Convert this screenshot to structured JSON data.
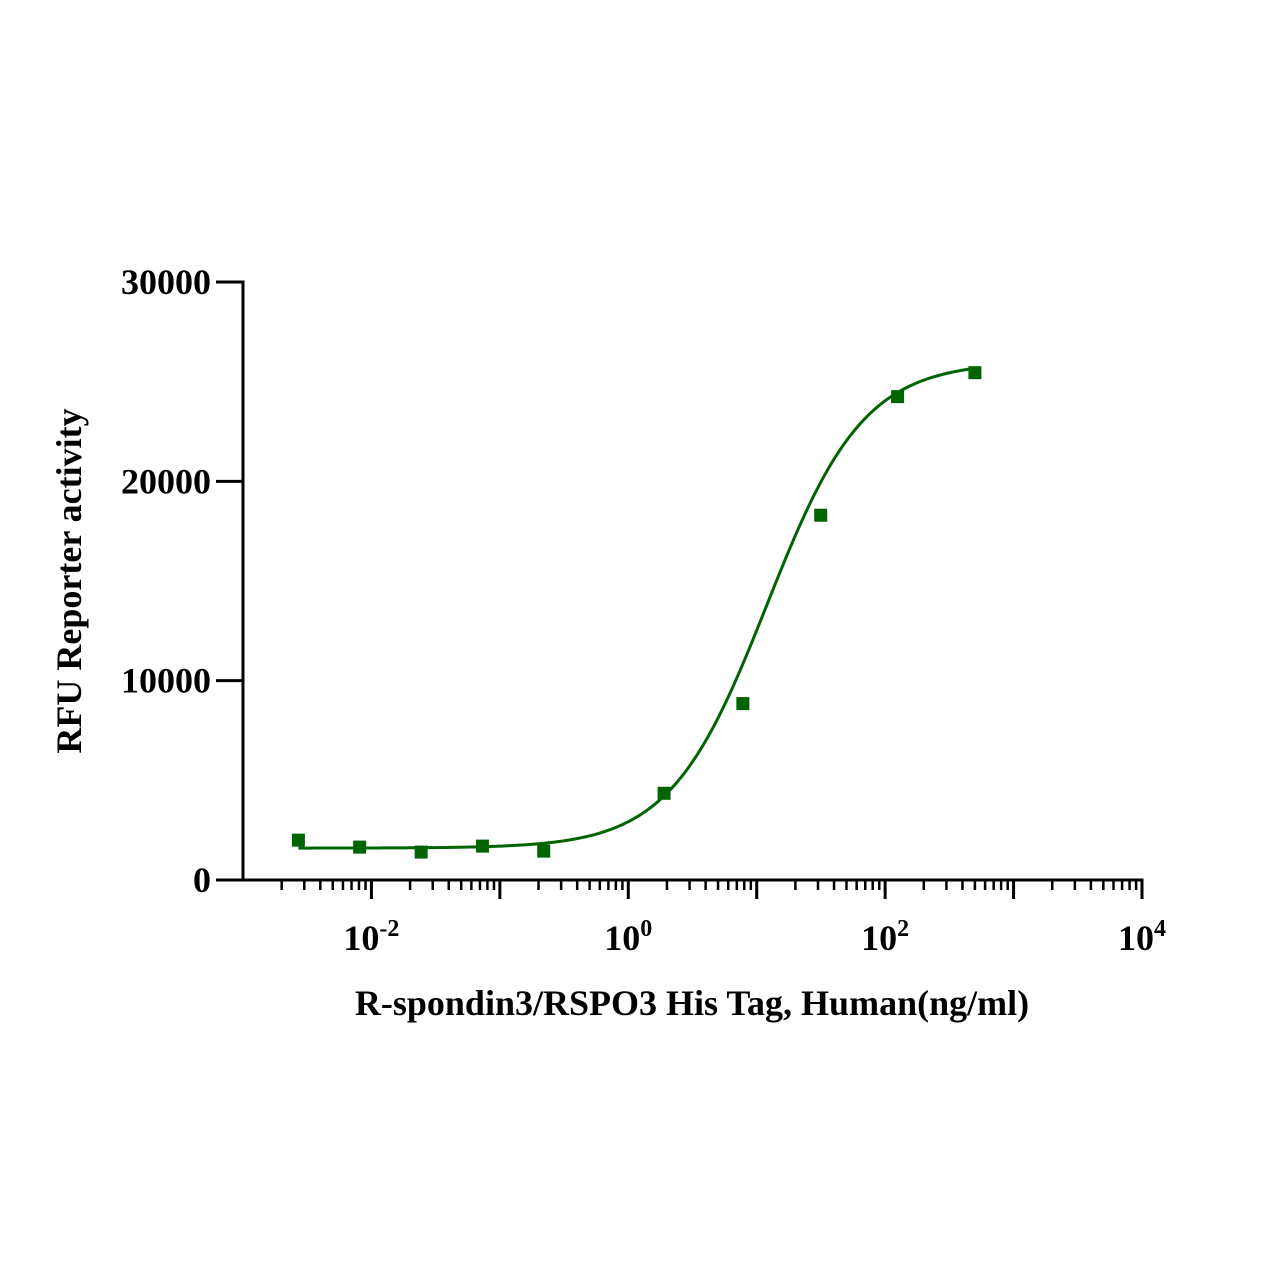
{
  "chart_data": {
    "type": "scatter",
    "title": "",
    "xlabel": "R-spondin3/RSPO3 His Tag, Human(ng/ml)",
    "ylabel": "RFU Reporter activity",
    "x_scale": "log",
    "xlim": [
      0.001,
      10000
    ],
    "ylim": [
      0,
      30000
    ],
    "y_ticks": [
      "0",
      "10000",
      "20000",
      "30000"
    ],
    "x_ticks": [
      {
        "base": "10",
        "exp": "-2"
      },
      {
        "base": "10",
        "exp": "0"
      },
      {
        "base": "10",
        "exp": "2"
      },
      {
        "base": "10",
        "exp": "4"
      }
    ],
    "grid": false,
    "legend": "none",
    "series": [
      {
        "color": "#006400",
        "marker": "square",
        "x": [
          0.0027,
          0.0081,
          0.0244,
          0.0732,
          0.2195,
          1.9,
          7.8,
          31.5,
          125,
          500
        ],
        "y": [
          2000,
          1650,
          1400,
          1700,
          1450,
          4350,
          8850,
          18300,
          24250,
          25450
        ]
      }
    ],
    "fit": {
      "type": "4PL",
      "color": "#006400",
      "bottom": 1600,
      "top": 26000,
      "ec50": 12,
      "hill": 1.15
    }
  }
}
